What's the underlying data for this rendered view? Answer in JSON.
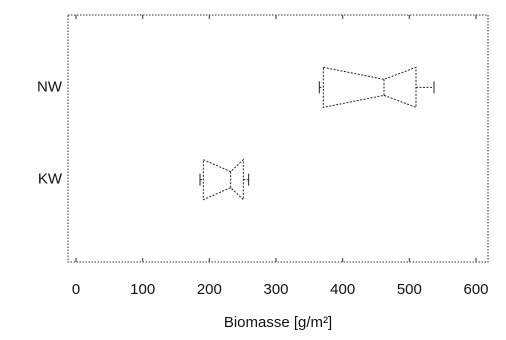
{
  "chart_data": {
    "type": "box",
    "xlabel": "Biomasse [g/m²]",
    "categories": [
      "NW",
      "KW"
    ],
    "boxes": [
      {
        "min": 365,
        "q1": 371,
        "median": 462,
        "q3": 510,
        "max": 537
      },
      {
        "min": 186,
        "q1": 191,
        "median": 232,
        "q3": 251,
        "max": 259
      }
    ],
    "color": "#222222",
    "xlim": [
      -12,
      618
    ],
    "xticks": [
      0,
      100,
      200,
      300,
      400,
      500,
      600
    ]
  }
}
